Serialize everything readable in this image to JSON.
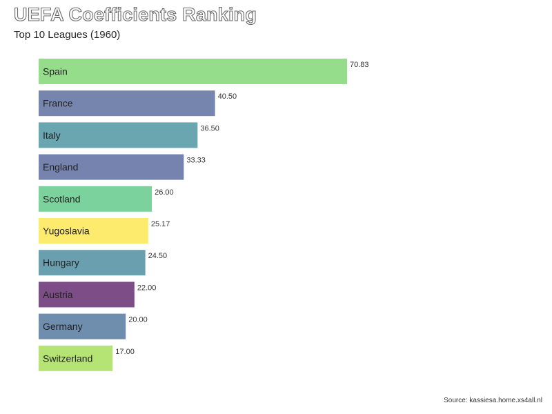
{
  "title": "UEFA Coefficients Ranking",
  "subtitle": "Top 10 Leagues (1960)",
  "source": "Source: kassiesa.home.xs4all.nl",
  "chart_data": {
    "type": "bar",
    "orientation": "horizontal",
    "title": "UEFA Coefficients Ranking",
    "subtitle": "Top 10 Leagues (1960)",
    "xlabel": "",
    "ylabel": "",
    "xlim": [
      0,
      70.83
    ],
    "grid": false,
    "legend": "none",
    "categories": [
      "Spain",
      "France",
      "Italy",
      "England",
      "Scotland",
      "Yugoslavia",
      "Hungary",
      "Austria",
      "Germany",
      "Switzerland"
    ],
    "values": [
      70.83,
      40.5,
      36.5,
      33.33,
      26.0,
      25.17,
      24.5,
      22.0,
      20.0,
      17.0
    ],
    "value_labels": [
      "70.83",
      "40.50",
      "36.50",
      "33.33",
      "26.00",
      "25.17",
      "24.50",
      "22.00",
      "20.00",
      "17.00"
    ],
    "colors": [
      "#95dd8b",
      "#7585ad",
      "#69a6af",
      "#7583ae",
      "#7bd29c",
      "#fdeb6e",
      "#699faf",
      "#7d4d87",
      "#6f8eae",
      "#b5e474"
    ]
  }
}
